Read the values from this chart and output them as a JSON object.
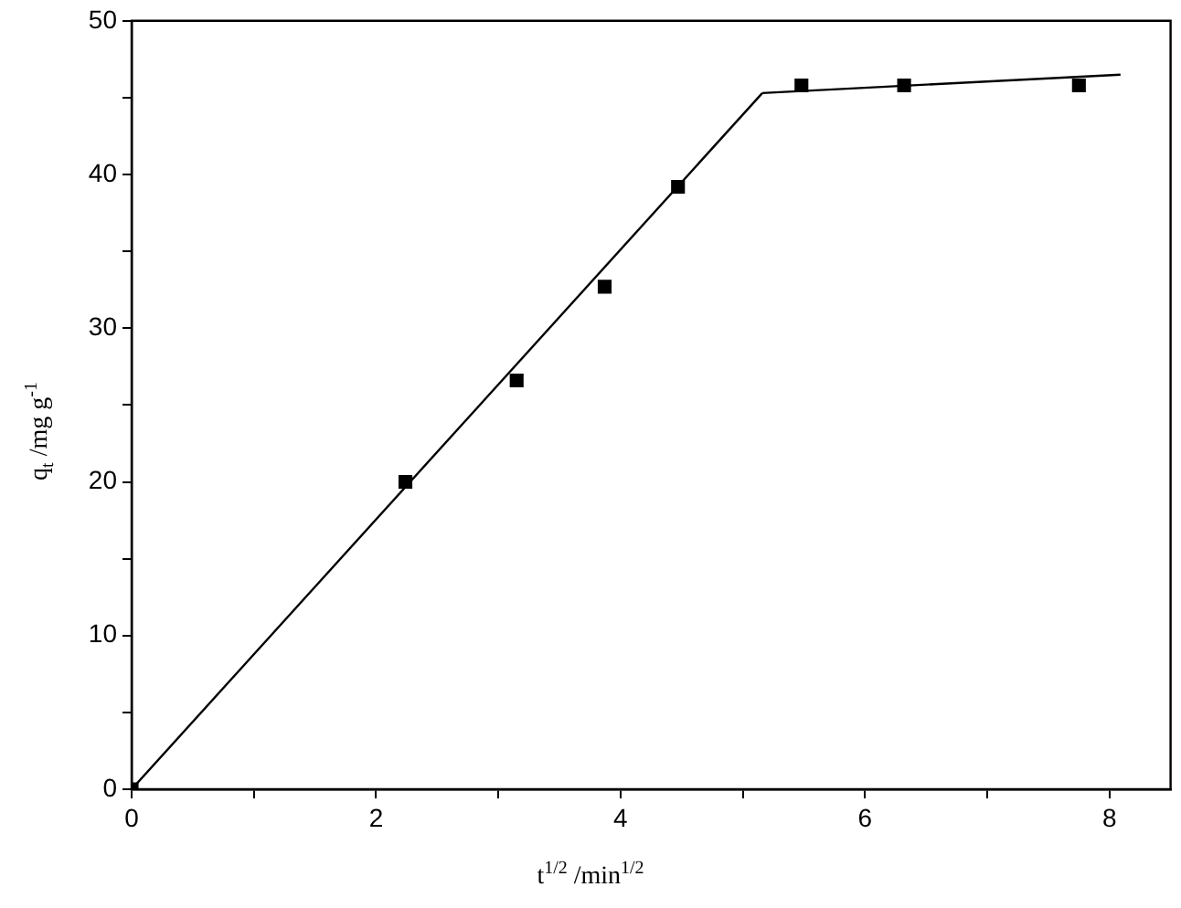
{
  "chart_data": {
    "type": "scatter",
    "xlabel": "t$^{1/2}$ /min$^{1/2}$",
    "ylabel": "q$_{t}$ /mg g$^{-1}$",
    "xlim": [
      0,
      8.5
    ],
    "ylim": [
      0,
      50
    ],
    "xticks": [
      0,
      {
        "value": 1,
        "label": null
      },
      2,
      {
        "value": 3,
        "label": null
      },
      4,
      {
        "value": 5,
        "label": null
      },
      6,
      {
        "value": 7,
        "label": null
      },
      8
    ],
    "yticks": [
      0,
      {
        "value": 5,
        "label": null
      },
      10,
      {
        "value": 15,
        "label": null
      },
      20,
      {
        "value": 25,
        "label": null
      },
      30,
      {
        "value": 35,
        "label": null
      },
      40,
      {
        "value": 45,
        "label": null
      },
      50
    ],
    "grid": false,
    "legend": false,
    "series": [
      {
        "color": "#000000",
        "marker": "square",
        "x": [
          0,
          2.24,
          3.15,
          3.87,
          4.47,
          5.48,
          6.32,
          7.75
        ],
        "values": [
          0,
          20,
          26.6,
          32.7,
          39.2,
          45.8,
          45.8,
          45.8
        ]
      },
      {
        "type": "line",
        "color": "#000000",
        "marker": "none",
        "x": [
          0,
          5.16
        ],
        "values": [
          0,
          45.3
        ]
      },
      {
        "type": "line",
        "color": "#000000",
        "marker": "none",
        "x": [
          5.16,
          8.09
        ],
        "values": [
          45.3,
          46.5
        ]
      }
    ]
  }
}
